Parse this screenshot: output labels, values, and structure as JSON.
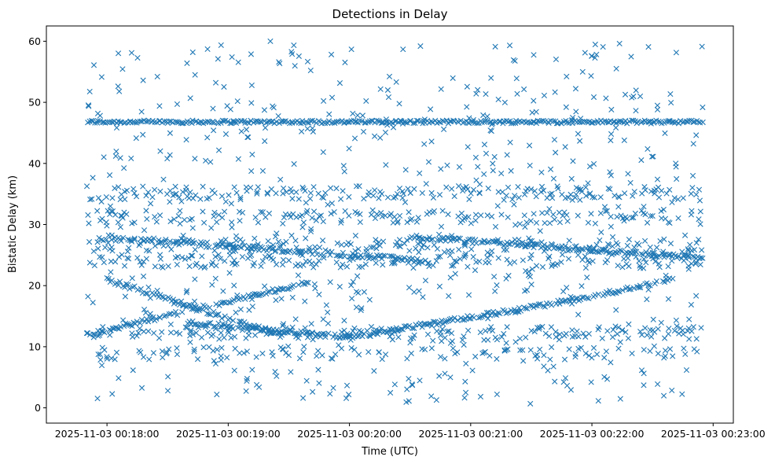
{
  "chart_data": {
    "type": "scatter",
    "title": "Detections in Delay",
    "xlabel": "Time (UTC)",
    "ylabel": "Bistatic Delay (km)",
    "marker": "x",
    "color": "#1f77b4",
    "grid": false,
    "x_start": "2025-11-03 00:17:50",
    "x_end": "2025-11-03 00:22:55",
    "xlim": [
      "2025-11-03 00:17:30",
      "2025-11-03 00:23:10"
    ],
    "ylim": [
      -2.5,
      62.5
    ],
    "xticks": [
      "2025-11-03 00:18:00",
      "2025-11-03 00:19:00",
      "2025-11-03 00:20:00",
      "2025-11-03 00:21:00",
      "2025-11-03 00:22:00",
      "2025-11-03 00:23:00"
    ],
    "yticks": [
      0,
      10,
      20,
      30,
      40,
      50,
      60
    ],
    "series": [
      {
        "values_note_bands": "persistent clutter bands in km",
        "bands": [
          46.8,
          35.2,
          31.2,
          26.5,
          24.0,
          12.2,
          9.0
        ],
        "tracks": [
          {
            "from_time": "2025-11-03 00:17:50",
            "from_km": 12.0,
            "to_time": "2025-11-03 00:19:40",
            "to_km": 20.5
          },
          {
            "from_time": "2025-11-03 00:18:00",
            "from_km": 21.0,
            "to_time": "2025-11-03 00:19:25",
            "to_km": 12.0
          },
          {
            "from_time": "2025-11-03 00:18:40",
            "from_km": 14.0,
            "to_time": "2025-11-03 00:20:00",
            "to_km": 11.5
          },
          {
            "from_time": "2025-11-03 00:20:00",
            "from_km": 11.5,
            "to_time": "2025-11-03 00:21:40",
            "to_km": 17.0
          },
          {
            "from_time": "2025-11-03 00:21:40",
            "from_km": 17.0,
            "to_time": "2025-11-03 00:22:40",
            "to_km": 21.0
          },
          {
            "from_time": "2025-11-03 00:18:00",
            "from_km": 28.0,
            "to_time": "2025-11-03 00:20:40",
            "to_km": 24.0
          },
          {
            "from_time": "2025-11-03 00:20:30",
            "from_km": 28.0,
            "to_time": "2025-11-03 00:22:55",
            "to_km": 24.5
          }
        ]
      }
    ]
  }
}
